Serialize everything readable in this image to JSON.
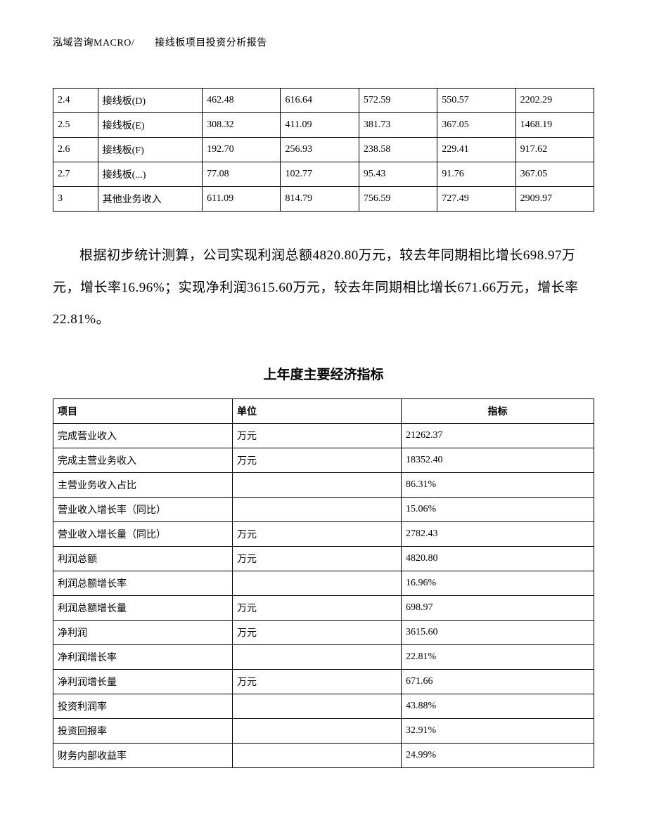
{
  "header": {
    "text": "泓域咨询MACRO/　　接线板项目投资分析报告"
  },
  "table1": {
    "type": "table",
    "rows": [
      {
        "c1": "2.4",
        "c2": "接线板(D)",
        "c3": "462.48",
        "c4": "616.64",
        "c5": "572.59",
        "c6": "550.57",
        "c7": "2202.29"
      },
      {
        "c1": "2.5",
        "c2": "接线板(E)",
        "c3": "308.32",
        "c4": "411.09",
        "c5": "381.73",
        "c6": "367.05",
        "c7": "1468.19"
      },
      {
        "c1": "2.6",
        "c2": "接线板(F)",
        "c3": "192.70",
        "c4": "256.93",
        "c5": "238.58",
        "c6": "229.41",
        "c7": "917.62"
      },
      {
        "c1": "2.7",
        "c2": "接线板(...)",
        "c3": "77.08",
        "c4": "102.77",
        "c5": "95.43",
        "c6": "91.76",
        "c7": "367.05"
      },
      {
        "c1": "3",
        "c2": "其他业务收入",
        "c3": "611.09",
        "c4": "814.79",
        "c5": "756.59",
        "c6": "727.49",
        "c7": "2909.97"
      }
    ],
    "border_color": "#000000",
    "fontsize": 14
  },
  "paragraph": {
    "text": "根据初步统计测算，公司实现利润总额4820.80万元，较去年同期相比增长698.97万元，增长率16.96%；实现净利润3615.60万元，较去年同期相比增长671.66万元，增长率22.81%。",
    "fontsize": 19,
    "line_height": 2.4
  },
  "subtitle": {
    "text": "上年度主要经济指标",
    "fontsize": 19,
    "fontweight": "bold"
  },
  "table2": {
    "type": "table",
    "headers": {
      "h1": "项目",
      "h2": "单位",
      "h3": "指标"
    },
    "rows": [
      {
        "item": "完成营业收入",
        "unit": "万元",
        "value": "21262.37"
      },
      {
        "item": "完成主营业务收入",
        "unit": "万元",
        "value": "18352.40"
      },
      {
        "item": "主营业务收入占比",
        "unit": "",
        "value": "86.31%"
      },
      {
        "item": "营业收入增长率（同比）",
        "unit": "",
        "value": "15.06%"
      },
      {
        "item": "营业收入增长量（同比）",
        "unit": "万元",
        "value": "2782.43"
      },
      {
        "item": "利润总额",
        "unit": "万元",
        "value": "4820.80"
      },
      {
        "item": "利润总额增长率",
        "unit": "",
        "value": "16.96%"
      },
      {
        "item": "利润总额增长量",
        "unit": "万元",
        "value": "698.97"
      },
      {
        "item": "净利润",
        "unit": "万元",
        "value": "3615.60"
      },
      {
        "item": "净利润增长率",
        "unit": "",
        "value": "22.81%"
      },
      {
        "item": "净利润增长量",
        "unit": "万元",
        "value": "671.66"
      },
      {
        "item": "投资利润率",
        "unit": "",
        "value": "43.88%"
      },
      {
        "item": "投资回报率",
        "unit": "",
        "value": "32.91%"
      },
      {
        "item": "财务内部收益率",
        "unit": "",
        "value": "24.99%"
      }
    ],
    "border_color": "#000000",
    "fontsize": 14
  },
  "colors": {
    "background": "#ffffff",
    "text": "#000000",
    "border": "#000000"
  }
}
